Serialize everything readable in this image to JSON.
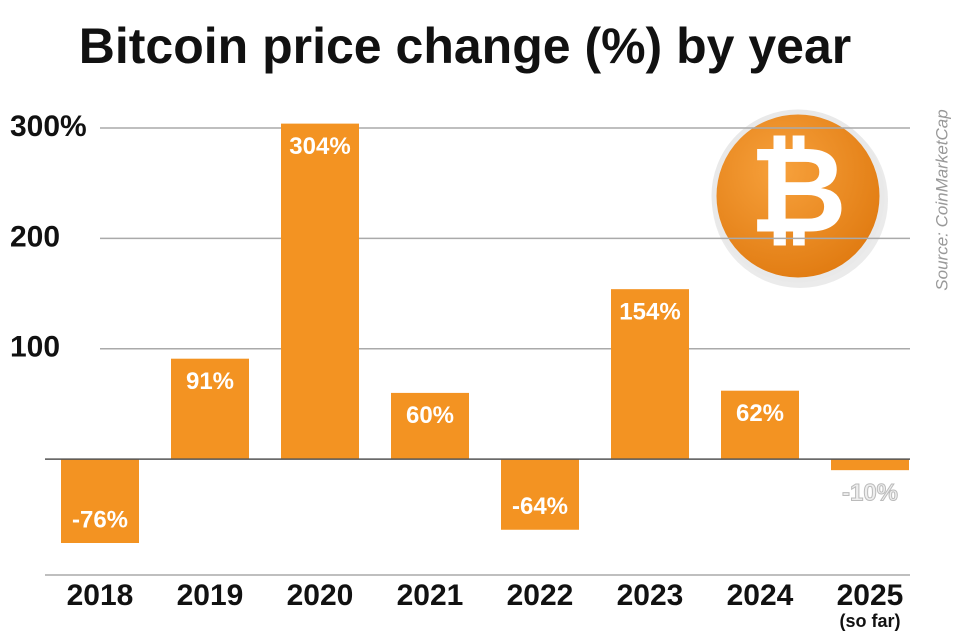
{
  "chart_data": {
    "type": "bar",
    "title": "Bitcoin price change (%) by year",
    "categories": [
      "2018",
      "2019",
      "2020",
      "2021",
      "2022",
      "2023",
      "2024",
      "2025"
    ],
    "category_sublabels": [
      null,
      null,
      null,
      null,
      null,
      null,
      null,
      "(so far)"
    ],
    "values": [
      -76,
      91,
      304,
      60,
      -64,
      154,
      62,
      -10
    ],
    "value_labels": [
      "-76%",
      "91%",
      "304%",
      "60%",
      "-64%",
      "154%",
      "62%",
      "-10%"
    ],
    "color": "#f39322",
    "ylim": [
      -105,
      310
    ],
    "yticks": [
      {
        "value": 300,
        "label": "300%"
      },
      200,
      100
    ],
    "grid": true,
    "source": "Source: CoinMarketCap",
    "logo_text": "₿"
  }
}
